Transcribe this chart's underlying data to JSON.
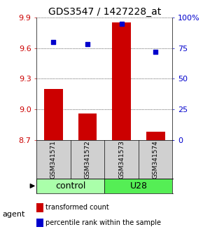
{
  "title": "GDS3547 / 1427228_at",
  "samples": [
    "GSM341571",
    "GSM341572",
    "GSM341573",
    "GSM341574"
  ],
  "bar_values": [
    9.2,
    8.96,
    9.85,
    8.78
  ],
  "bar_baseline": 8.7,
  "percentile_values": [
    80,
    78,
    95,
    72
  ],
  "ylim_left": [
    8.7,
    9.9
  ],
  "ylim_right": [
    0,
    100
  ],
  "yticks_left": [
    8.7,
    9.0,
    9.3,
    9.6,
    9.9
  ],
  "yticks_right": [
    0,
    25,
    50,
    75,
    100
  ],
  "bar_color": "#cc0000",
  "dot_color": "#0000cc",
  "control_color": "#aaffaa",
  "u28_color": "#55ee55",
  "legend_bar_label": "transformed count",
  "legend_dot_label": "percentile rank within the sample",
  "agent_label": "agent",
  "background_color": "#ffffff",
  "title_fontsize": 10,
  "tick_fontsize": 8,
  "sample_fontsize": 6.5,
  "group_fontsize": 9,
  "legend_fontsize": 7
}
